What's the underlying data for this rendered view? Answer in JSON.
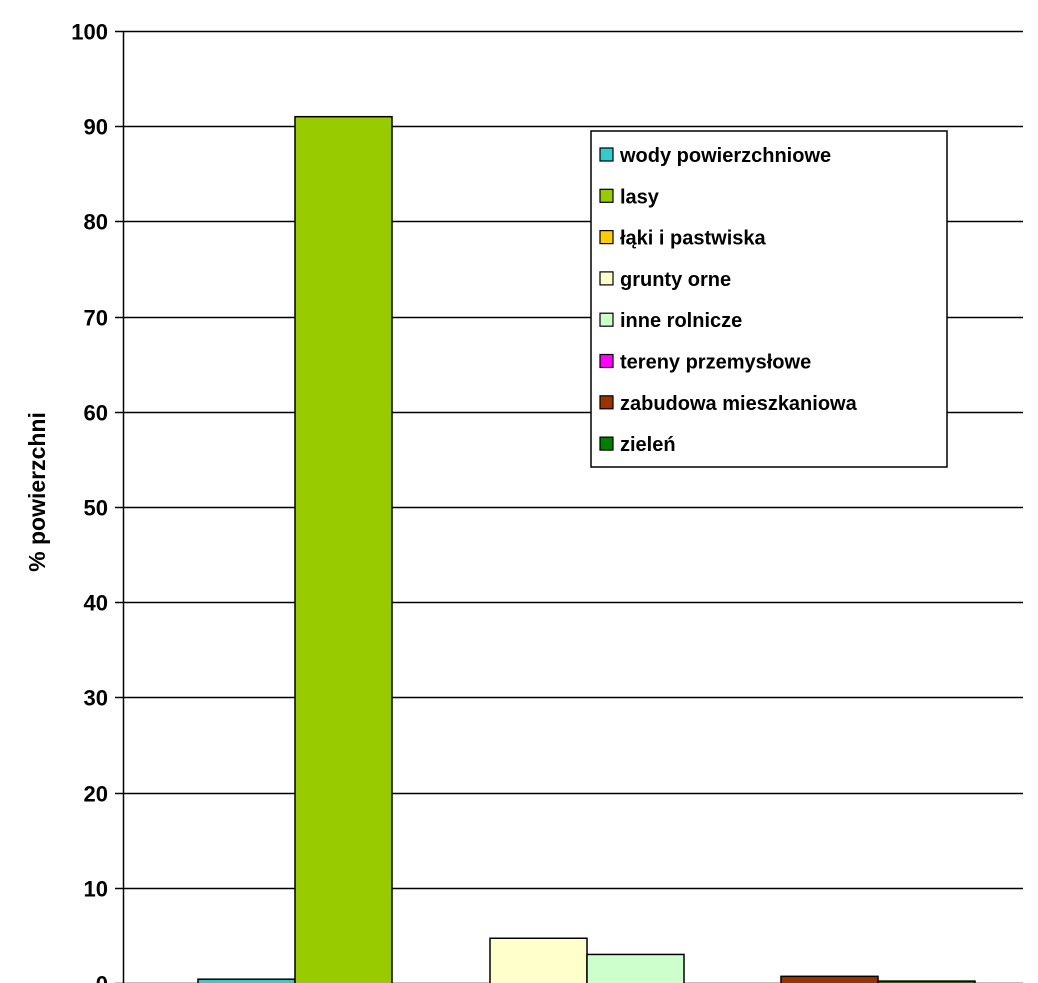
{
  "chart_data": {
    "type": "bar",
    "title": "",
    "xlabel": "",
    "ylabel": "% powierzchni",
    "ylim": [
      0,
      100
    ],
    "yticks": [
      0,
      10,
      20,
      30,
      40,
      50,
      60,
      70,
      80,
      90,
      100
    ],
    "grid": true,
    "legend_position": "top-right",
    "series": [
      {
        "name": "wody powierzchniowe",
        "value": 0.4,
        "color": "#33CCCC"
      },
      {
        "name": "lasy",
        "value": 91.0,
        "color": "#99CC00"
      },
      {
        "name": "łąki i pastwiska",
        "value": 0.0,
        "color": "#FFCC00"
      },
      {
        "name": "grunty orne",
        "value": 4.7,
        "color": "#FFFFCC"
      },
      {
        "name": "inne rolnicze",
        "value": 3.0,
        "color": "#CCFFCC"
      },
      {
        "name": "tereny przemysłowe",
        "value": 0.0,
        "color": "#FF00FF"
      },
      {
        "name": "zabudowa mieszkaniowa",
        "value": 0.7,
        "color": "#993300"
      },
      {
        "name": "zieleń",
        "value": 0.2,
        "color": "#008000"
      }
    ]
  }
}
